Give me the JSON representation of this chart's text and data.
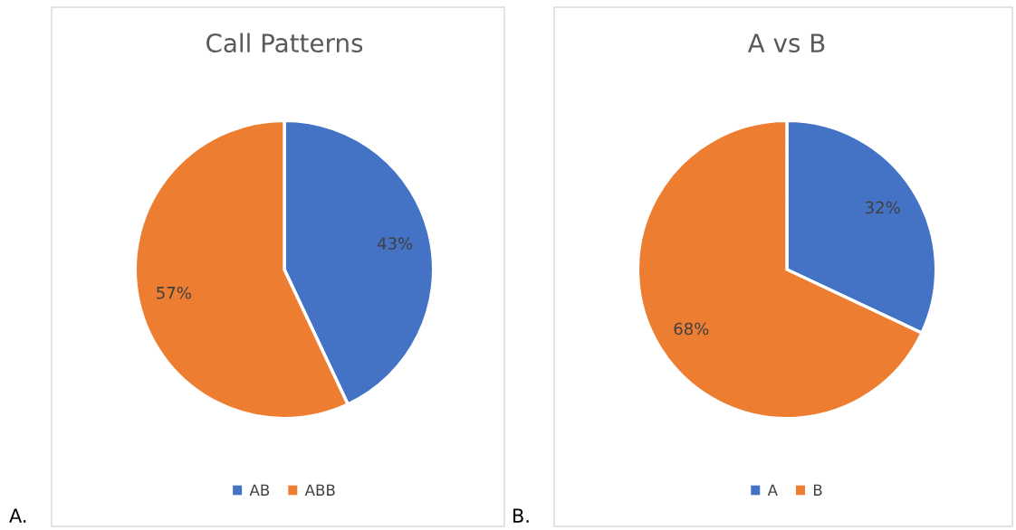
{
  "chart_data": [
    {
      "type": "pie",
      "title": "Call Patterns",
      "categories": [
        "AB",
        "ABB"
      ],
      "values": [
        43,
        57
      ],
      "value_labels": [
        "43%",
        "57%"
      ],
      "colors": [
        "#4472c4",
        "#ed7d31"
      ],
      "legend": "bottom",
      "annotations": [
        "A."
      ]
    },
    {
      "type": "pie",
      "title": "A vs B",
      "categories": [
        "A",
        "B"
      ],
      "values": [
        32,
        68
      ],
      "value_labels": [
        "32%",
        "68%"
      ],
      "colors": [
        "#4472c4",
        "#ed7d31"
      ],
      "legend": "bottom",
      "annotations": [
        "B."
      ]
    }
  ]
}
